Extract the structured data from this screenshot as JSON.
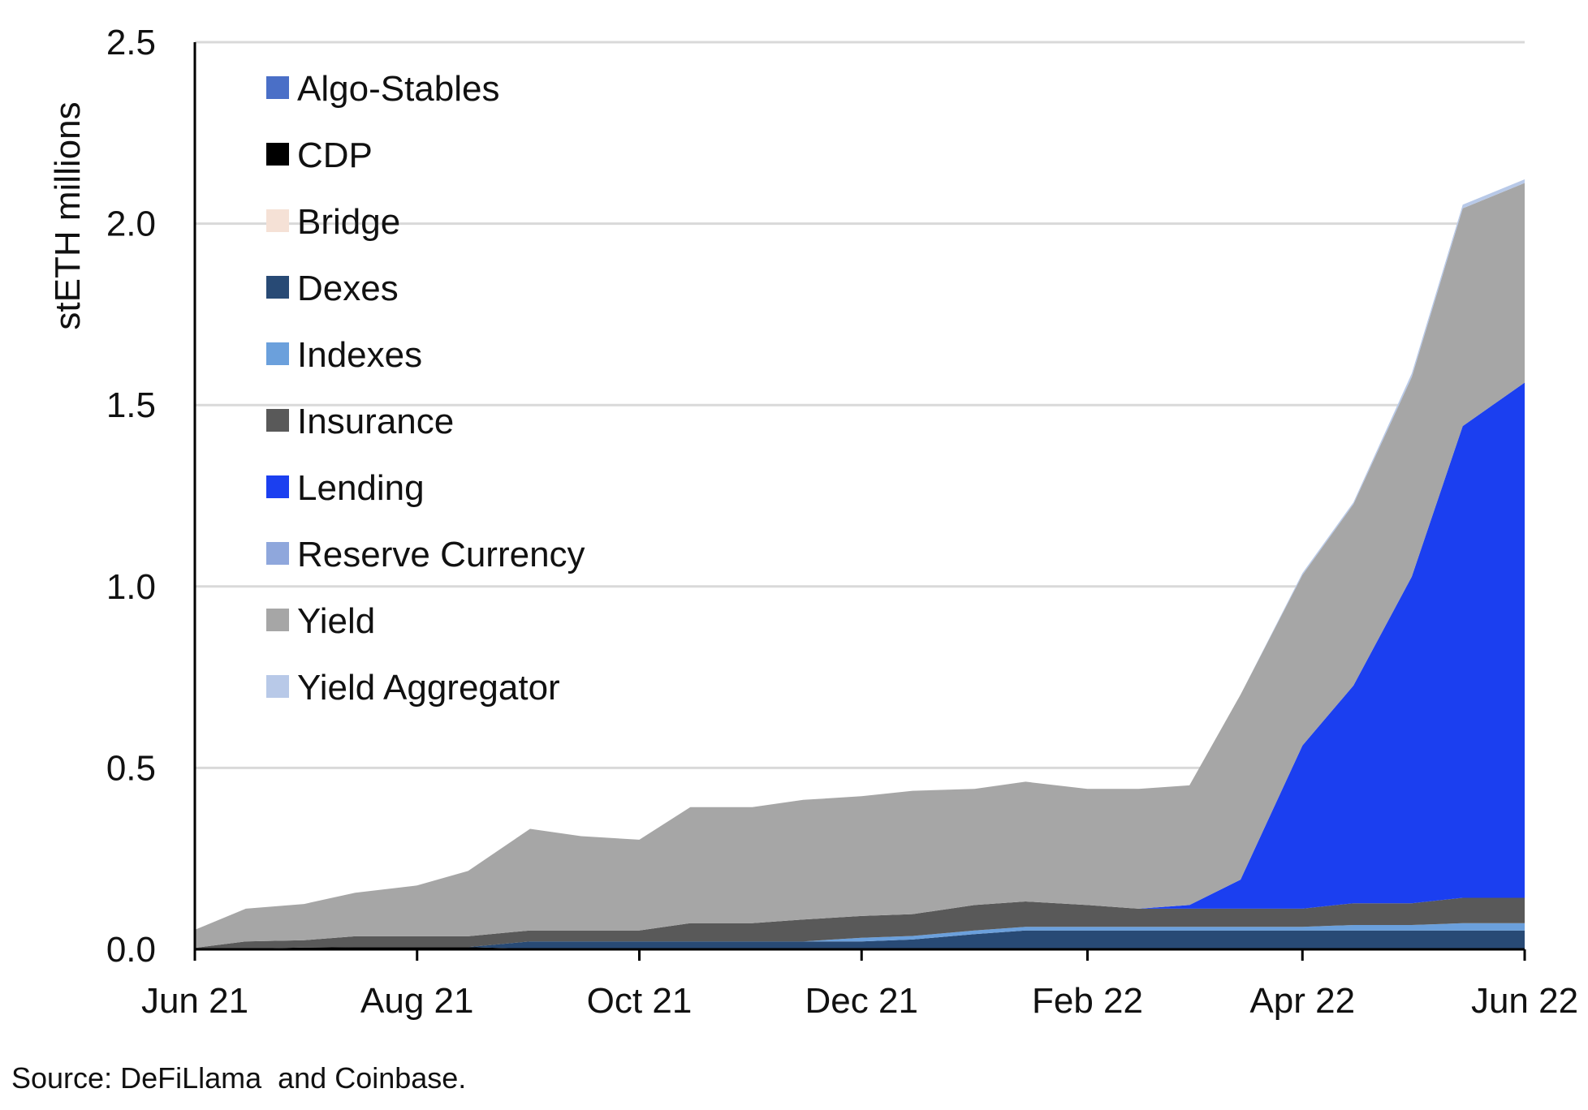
{
  "chart_data": {
    "type": "area",
    "stacked": true,
    "ylabel": "stETH millions",
    "ylim": [
      0,
      2.5
    ],
    "yticks": [
      "0.0",
      "0.5",
      "1.0",
      "1.5",
      "2.0",
      "2.5"
    ],
    "xticks": [
      "Jun 21",
      "Aug 21",
      "Oct 21",
      "Dec 21",
      "Feb 22",
      "Apr 22",
      "Jun 22"
    ],
    "grid": true,
    "legend_position": "top-left",
    "x": [
      "2021-06-01",
      "2021-06-15",
      "2021-07-01",
      "2021-07-15",
      "2021-08-01",
      "2021-08-15",
      "2021-09-01",
      "2021-09-15",
      "2021-10-01",
      "2021-10-15",
      "2021-11-01",
      "2021-11-15",
      "2021-12-01",
      "2021-12-15",
      "2022-01-01",
      "2022-01-15",
      "2022-02-01",
      "2022-02-15",
      "2022-03-01",
      "2022-03-15",
      "2022-04-01",
      "2022-04-15",
      "2022-05-01",
      "2022-05-15",
      "2022-06-01"
    ],
    "series": [
      {
        "name": "Algo-Stables",
        "color": "#4a6fc7",
        "values": [
          0,
          0,
          0,
          0,
          0,
          0,
          0,
          0,
          0,
          0,
          0,
          0,
          0,
          0,
          0,
          0,
          0,
          0,
          0,
          0,
          0,
          0,
          0,
          0,
          0
        ]
      },
      {
        "name": "CDP",
        "color": "#000000",
        "values": [
          0.002,
          0.002,
          0.005,
          0.006,
          0.006,
          0.006,
          0.002,
          0.002,
          0.002,
          0.002,
          0.002,
          0.002,
          0.002,
          0.002,
          0.002,
          0.002,
          0.002,
          0.002,
          0.002,
          0.002,
          0.002,
          0.002,
          0.002,
          0.002,
          0.002
        ]
      },
      {
        "name": "Bridge",
        "color": "#f5e1d6",
        "values": [
          0,
          0,
          0,
          0,
          0,
          0,
          0,
          0,
          0,
          0,
          0,
          0,
          0,
          0,
          0,
          0,
          0,
          0,
          0,
          0,
          0,
          0,
          0,
          0,
          0
        ]
      },
      {
        "name": "Dexes",
        "color": "#284a75",
        "values": [
          0,
          0,
          0,
          0,
          0,
          0,
          0.02,
          0.02,
          0.02,
          0.02,
          0.02,
          0.02,
          0.02,
          0.025,
          0.04,
          0.05,
          0.05,
          0.05,
          0.05,
          0.05,
          0.05,
          0.05,
          0.05,
          0.05,
          0.05
        ]
      },
      {
        "name": "Indexes",
        "color": "#6ba0dc",
        "values": [
          0,
          0,
          0,
          0,
          0,
          0,
          0,
          0,
          0,
          0,
          0,
          0,
          0.01,
          0.01,
          0.01,
          0.01,
          0.01,
          0.01,
          0.01,
          0.01,
          0.01,
          0.015,
          0.015,
          0.02,
          0.02
        ]
      },
      {
        "name": "Insurance",
        "color": "#595959",
        "values": [
          0.002,
          0.02,
          0.02,
          0.03,
          0.03,
          0.03,
          0.03,
          0.03,
          0.03,
          0.05,
          0.05,
          0.06,
          0.06,
          0.06,
          0.07,
          0.07,
          0.06,
          0.05,
          0.05,
          0.05,
          0.05,
          0.06,
          0.06,
          0.07,
          0.07
        ]
      },
      {
        "name": "Lending",
        "color": "#1b3ff0",
        "values": [
          0,
          0,
          0,
          0,
          0,
          0,
          0,
          0,
          0,
          0,
          0,
          0,
          0,
          0,
          0,
          0,
          0,
          0,
          0.01,
          0.08,
          0.45,
          0.6,
          0.9,
          1.3,
          1.42
        ]
      },
      {
        "name": "Reserve Currency",
        "color": "#8fa7dc",
        "values": [
          0,
          0,
          0,
          0,
          0,
          0,
          0,
          0,
          0,
          0,
          0,
          0,
          0,
          0,
          0,
          0,
          0,
          0,
          0,
          0,
          0,
          0,
          0,
          0,
          0
        ]
      },
      {
        "name": "Yield",
        "color": "#a6a6a6",
        "values": [
          0.05,
          0.09,
          0.1,
          0.12,
          0.14,
          0.18,
          0.28,
          0.26,
          0.25,
          0.32,
          0.32,
          0.33,
          0.33,
          0.34,
          0.32,
          0.33,
          0.32,
          0.33,
          0.33,
          0.51,
          0.47,
          0.5,
          0.55,
          0.6,
          0.55
        ]
      },
      {
        "name": "Yield Aggregator",
        "color": "#b8c9e8",
        "values": [
          0,
          0,
          0,
          0,
          0,
          0,
          0,
          0,
          0,
          0,
          0,
          0,
          0,
          0,
          0,
          0,
          0,
          0,
          0,
          0,
          0.005,
          0.005,
          0.01,
          0.01,
          0.01
        ]
      }
    ]
  },
  "source_text": "Source: DeFiLlama  and Coinbase."
}
